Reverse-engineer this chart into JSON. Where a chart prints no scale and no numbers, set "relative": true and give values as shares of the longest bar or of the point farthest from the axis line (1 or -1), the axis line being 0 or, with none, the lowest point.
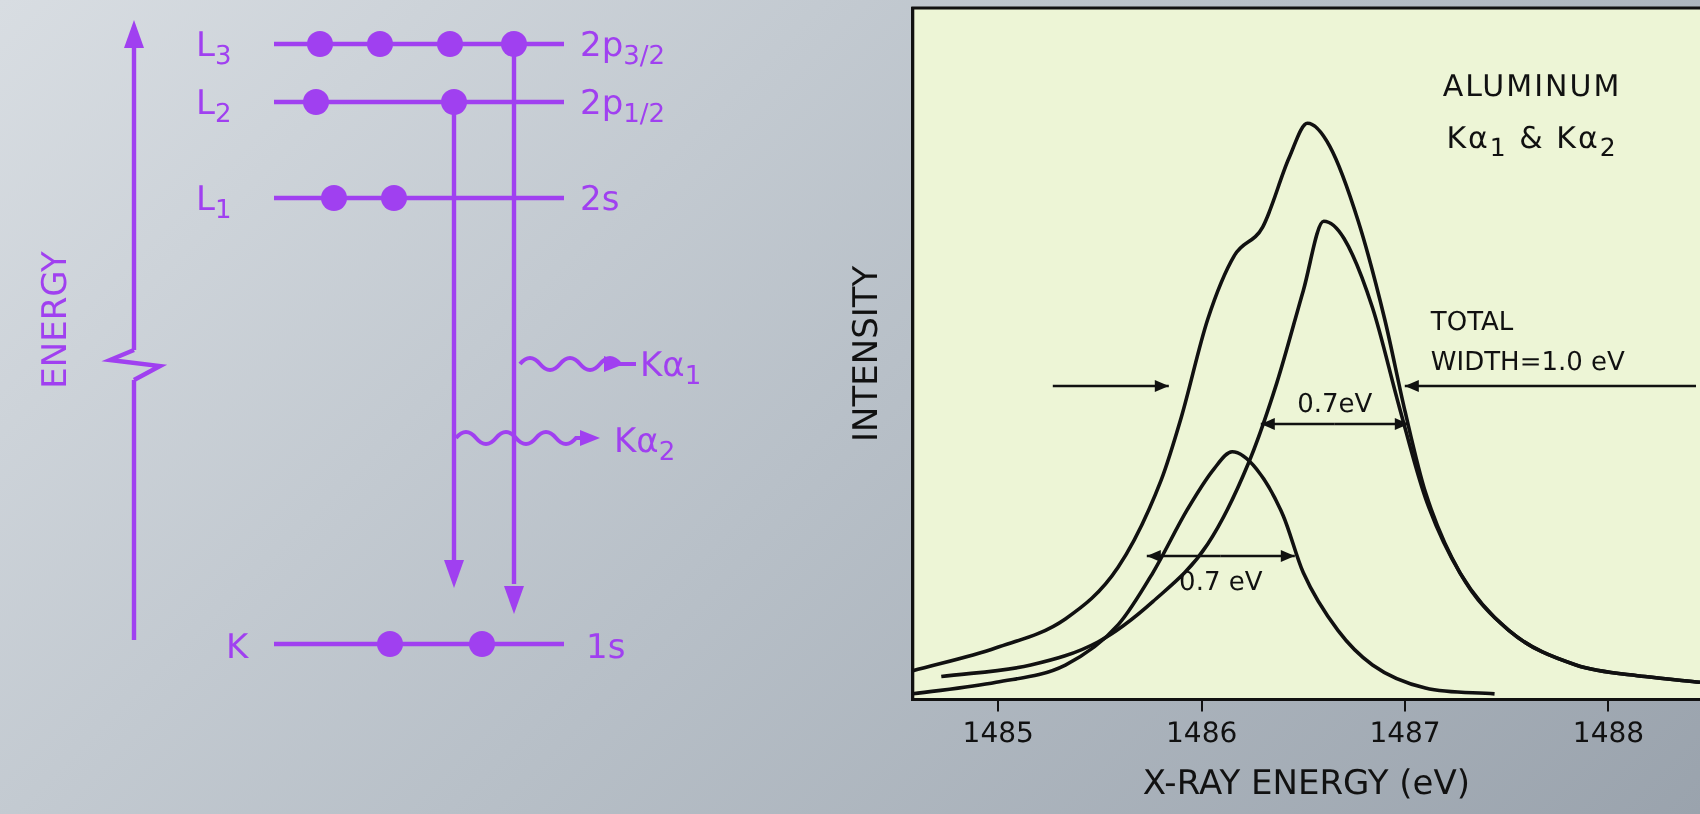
{
  "chart_data": {
    "type": "line",
    "title": "ALUMINUM Kα$_{1}$ & Kα$_{2}$",
    "xlabel": "X-RAY ENERGY (eV)",
    "ylabel": "INTENSITY",
    "relative": true,
    "legend": false,
    "marker": "none",
    "xlim": [
      1484.58,
      1488.45
    ],
    "xticks": [
      1485,
      1486,
      1487,
      1488
    ],
    "series": [
      {
        "color": "#111111",
        "x": [
          1484.58,
          1484.99,
          1485.33,
          1485.59,
          1485.8,
          1485.9,
          1486.03,
          1486.16,
          1486.3,
          1486.43,
          1486.52,
          1486.63,
          1486.77,
          1486.9,
          1487.0,
          1487.1,
          1487.27,
          1487.51,
          1487.84,
          1488.18,
          1488.45
        ],
        "values": [
          0.05,
          0.09,
          0.14,
          0.23,
          0.38,
          0.49,
          0.66,
          0.77,
          0.82,
          0.94,
          1.0,
          0.96,
          0.83,
          0.66,
          0.5,
          0.36,
          0.22,
          0.12,
          0.06,
          0.04,
          0.03
        ]
      },
      {
        "color": "#111111",
        "x": [
          1484.72,
          1485.16,
          1485.49,
          1485.76,
          1486.03,
          1486.23,
          1486.37,
          1486.5,
          1486.6,
          1486.7,
          1486.84,
          1486.97,
          1487.1,
          1487.27,
          1487.51,
          1487.84,
          1488.18,
          1488.45
        ],
        "values": [
          0.04,
          0.06,
          0.1,
          0.17,
          0.27,
          0.41,
          0.55,
          0.71,
          0.83,
          0.8,
          0.68,
          0.51,
          0.35,
          0.22,
          0.12,
          0.06,
          0.04,
          0.03
        ]
      },
      {
        "color": "#111111",
        "x": [
          1484.58,
          1484.99,
          1485.33,
          1485.59,
          1485.76,
          1485.93,
          1486.06,
          1486.15,
          1486.27,
          1486.4,
          1486.5,
          1486.67,
          1486.84,
          1487.1,
          1487.44
        ],
        "values": [
          0.01,
          0.03,
          0.06,
          0.13,
          0.22,
          0.33,
          0.4,
          0.43,
          0.4,
          0.32,
          0.22,
          0.12,
          0.06,
          0.02,
          0.01
        ]
      }
    ],
    "annotations": [
      "ENERGY",
      "L$_{3}$",
      "L$_{2}$",
      "L$_{1}$",
      "K",
      "2p$_{3/2}$",
      "2p$_{1/2}$",
      "2s",
      "1s",
      "Kα$_{1}$",
      "Kα$_{2}$",
      "0.7eV",
      "0.7 eV",
      "TOTAL WIDTH=1.0 eV"
    ]
  }
}
